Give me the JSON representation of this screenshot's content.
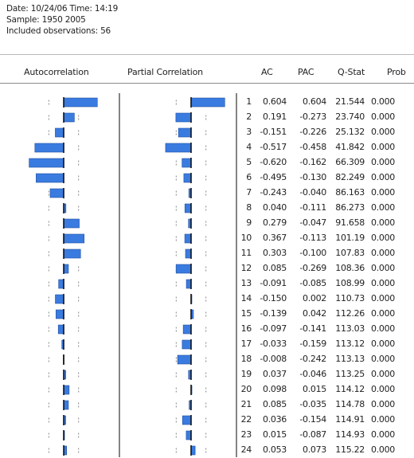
{
  "header": {
    "date_line": "Date: 10/24/06   Time: 14:19",
    "sample_line": "Sample: 1950 2005",
    "obs_line": "Included observations: 56"
  },
  "columns": {
    "autocorrelation": "Autocorrelation",
    "partial_correlation": "Partial Correlation",
    "ac": "AC",
    "pac": "PAC",
    "qstat": "Q-Stat",
    "prob": "Prob"
  },
  "colors": {
    "bar": "#3a7be0",
    "bar_dark": "#1f4f9f",
    "bounds": "#888888",
    "axis": "#333333"
  },
  "chart_data": {
    "type": "bar",
    "lags": [
      1,
      2,
      3,
      4,
      5,
      6,
      7,
      8,
      9,
      10,
      11,
      12,
      13,
      14,
      15,
      16,
      17,
      18,
      19,
      20,
      21,
      22,
      23,
      24
    ],
    "series": [
      {
        "values": [
          0.604,
          0.191,
          -0.151,
          -0.517,
          -0.62,
          -0.495,
          -0.243,
          0.04,
          0.279,
          0.367,
          0.303,
          0.085,
          -0.091,
          -0.15,
          -0.139,
          -0.097,
          -0.033,
          -0.008,
          0.037,
          0.098,
          0.085,
          0.036,
          0.015,
          0.053
        ]
      },
      {
        "values": [
          0.604,
          -0.273,
          -0.226,
          -0.458,
          -0.162,
          -0.13,
          -0.04,
          -0.111,
          -0.047,
          -0.113,
          -0.1,
          -0.269,
          -0.085,
          0.002,
          0.042,
          -0.141,
          -0.159,
          -0.242,
          -0.046,
          0.015,
          -0.035,
          -0.154,
          -0.087,
          0.073
        ]
      }
    ],
    "q_stat": [
      "21.544",
      "23.740",
      "25.132",
      "41.842",
      "66.309",
      "82.249",
      "86.163",
      "86.273",
      "91.658",
      "101.19",
      "107.83",
      "108.36",
      "108.99",
      "110.73",
      "112.26",
      "113.03",
      "113.12",
      "113.13",
      "113.25",
      "114.12",
      "114.78",
      "114.91",
      "114.93",
      "115.22"
    ],
    "prob": [
      "0.000",
      "0.000",
      "0.000",
      "0.000",
      "0.000",
      "0.000",
      "0.000",
      "0.000",
      "0.000",
      "0.000",
      "0.000",
      "0.000",
      "0.000",
      "0.000",
      "0.000",
      "0.000",
      "0.000",
      "0.000",
      "0.000",
      "0.000",
      "0.000",
      "0.000",
      "0.000",
      "0.000"
    ],
    "ac_text": [
      "0.604",
      "0.191",
      "-0.151",
      "-0.517",
      "-0.620",
      "-0.495",
      "-0.243",
      "0.040",
      "0.279",
      "0.367",
      "0.303",
      "0.085",
      "-0.091",
      "-0.150",
      "-0.139",
      "-0.097",
      "-0.033",
      "-0.008",
      "0.037",
      "0.098",
      "0.085",
      "0.036",
      "0.015",
      "0.053"
    ],
    "pac_text": [
      "0.604",
      "-0.273",
      "-0.226",
      "-0.458",
      "-0.162",
      "-0.130",
      "-0.040",
      "-0.111",
      "-0.047",
      "-0.113",
      "-0.100",
      "-0.269",
      "-0.085",
      "0.002",
      "0.042",
      "-0.141",
      "-0.159",
      "-0.242",
      "-0.046",
      "0.015",
      "-0.035",
      "-0.154",
      "-0.087",
      "0.073"
    ],
    "confidence_bound": 0.267
  }
}
